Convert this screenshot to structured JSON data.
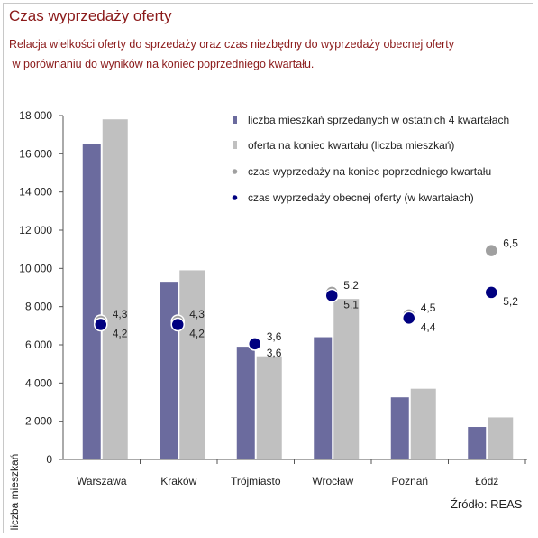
{
  "title": "Czas wyprzedaży oferty",
  "subtitle_line1": "Relacja wielkości oferty do sprzedaży oraz czas niezbędny do wyprzedaży obecnej oferty",
  "subtitle_line2": " w porównaniu do wyników na koniec poprzedniego kwartału.",
  "source": "Źródło: REAS",
  "colors": {
    "sold": "#6b6b9e",
    "offer": "#c0c0c0",
    "prev_time": "#a0a0a0",
    "curr_time": "#000080",
    "title": "#8b1a1a"
  },
  "chart_data": {
    "type": "bar",
    "ylabel": "liczba mieszkań",
    "ylim": [
      0,
      18000
    ],
    "yticks": [
      "0",
      "2 000",
      "4 000",
      "6 000",
      "8 000",
      "10 000",
      "12 000",
      "14 000",
      "16 000",
      "18 000"
    ],
    "ytick_values": [
      0,
      2000,
      4000,
      6000,
      8000,
      10000,
      12000,
      14000,
      16000,
      18000
    ],
    "categories": [
      "Warszawa",
      "Kraków",
      "Trójmiasto",
      "Wrocław",
      "Poznań",
      "Łódź"
    ],
    "series": [
      {
        "name": "liczba mieszkań sprzedanych w ostatnich 4 kwartałach",
        "values": [
          16500,
          9300,
          5900,
          6400,
          3250,
          1700
        ]
      },
      {
        "name": "oferta na koniec kwartału (liczba mieszkań)",
        "values": [
          17800,
          9900,
          5400,
          8400,
          3700,
          2200
        ]
      }
    ],
    "time_series": [
      {
        "name": "czas wyprzedaży na koniec poprzedniego kwartału",
        "values": [
          4.3,
          4.3,
          3.6,
          5.2,
          4.5,
          6.5
        ],
        "labels": [
          "4,3",
          "4,3",
          "3,6",
          "5,2",
          "4,5",
          "6,5"
        ]
      },
      {
        "name": "czas wyprzedaży obecnej oferty (w kwartałach)",
        "values": [
          4.2,
          4.2,
          3.6,
          5.1,
          4.4,
          5.2
        ],
        "labels": [
          "4,2",
          "4,2",
          "3,6",
          "5,1",
          "4,4",
          "5,2"
        ]
      }
    ],
    "legend_position": "top-right",
    "grid": false
  }
}
